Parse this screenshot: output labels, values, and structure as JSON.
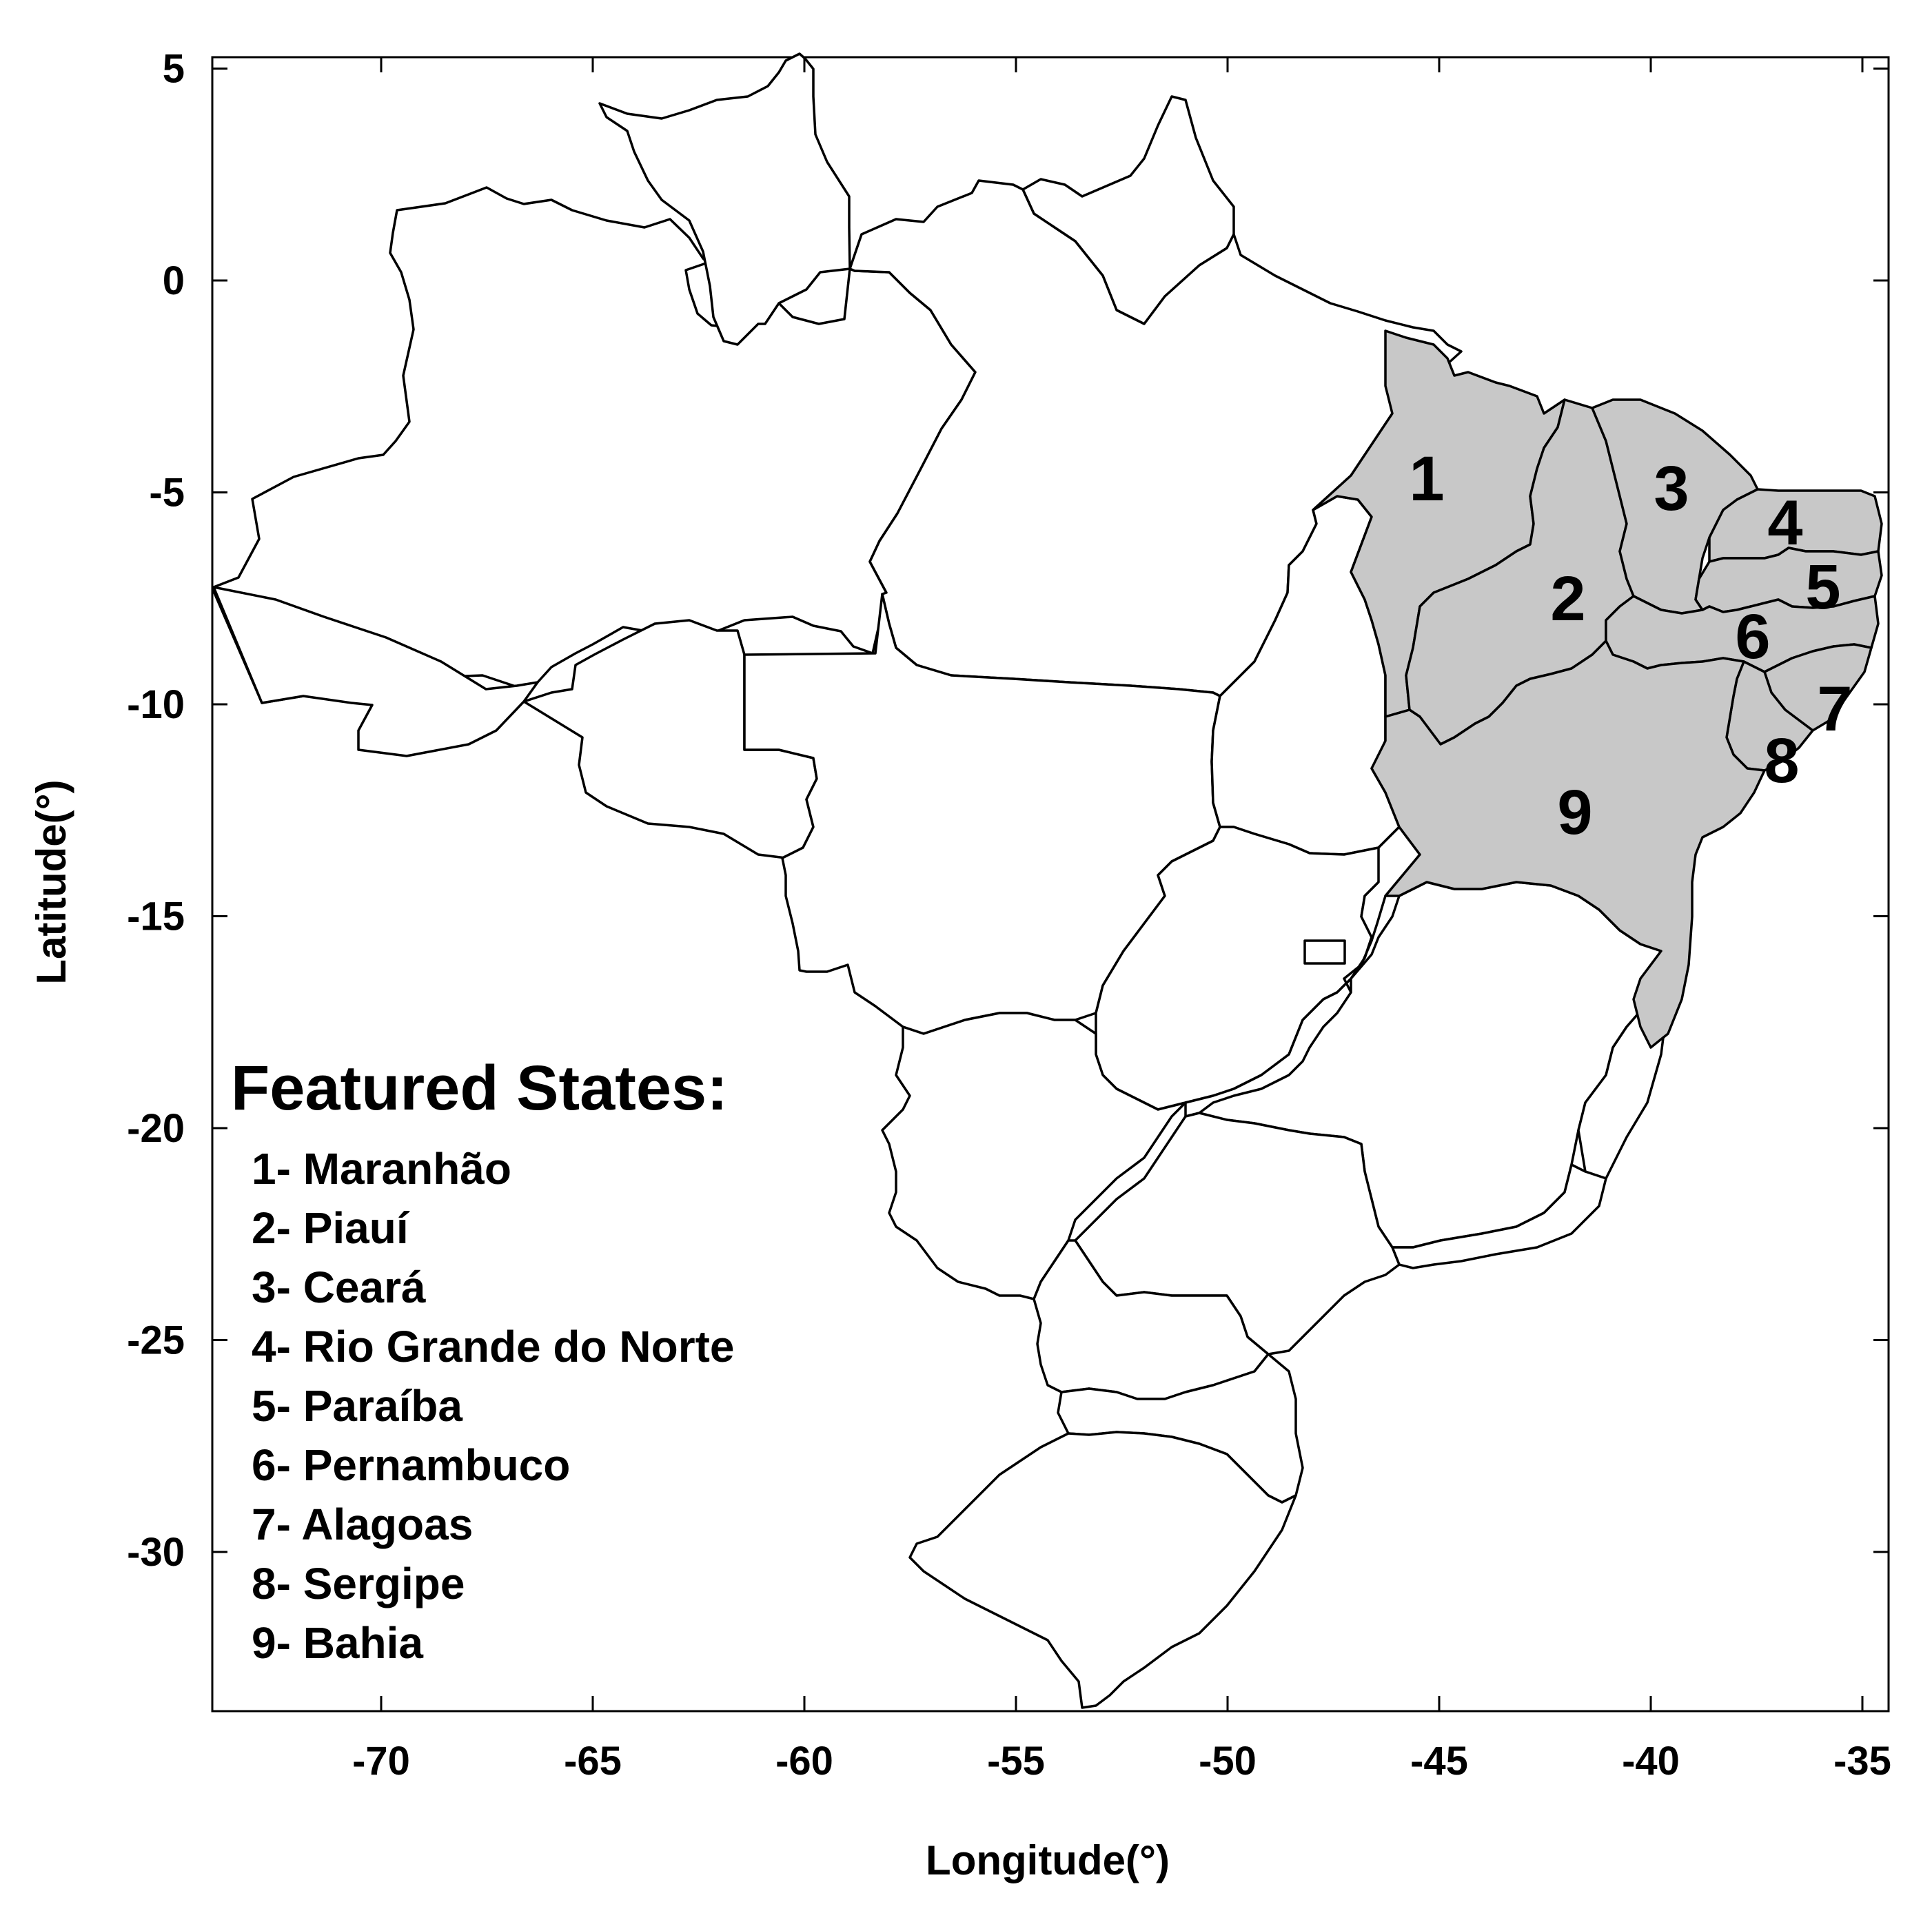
{
  "axes": {
    "x_label": "Longitude(°)",
    "y_label": "Latitude(°)",
    "x_ticks": [
      "-70",
      "-65",
      "-60",
      "-55",
      "-50",
      "-45",
      "-40",
      "-35"
    ],
    "y_ticks": [
      "5",
      "0",
      "-5",
      "-10",
      "-15",
      "-20",
      "-25",
      "-30"
    ],
    "x_range": [
      -74,
      -34.5
    ],
    "y_range": [
      -33.8,
      5.3
    ]
  },
  "colors": {
    "highlight_fill": "#c8c8c8",
    "base_fill": "#ffffff",
    "border": "#000000"
  },
  "map": {
    "region": "Brazil",
    "highlighted_states": [
      {
        "number": "1",
        "name": "Maranhão"
      },
      {
        "number": "2",
        "name": "Piauí"
      },
      {
        "number": "3",
        "name": "Ceará"
      },
      {
        "number": "4",
        "name": "Rio Grande do Norte"
      },
      {
        "number": "5",
        "name": "Paraíba"
      },
      {
        "number": "6",
        "name": "Pernambuco"
      },
      {
        "number": "7",
        "name": "Alagoas"
      },
      {
        "number": "8",
        "name": "Sergipe"
      },
      {
        "number": "9",
        "name": "Bahia"
      }
    ]
  },
  "legend": {
    "title": "Featured States:",
    "items": [
      "1- Maranhão",
      "2- Piauí",
      "3- Ceará",
      "4- Rio Grande do Norte",
      "5- Paraíba",
      "6- Pernambuco",
      "7- Alagoas",
      "8- Sergipe",
      "9- Bahia"
    ]
  }
}
